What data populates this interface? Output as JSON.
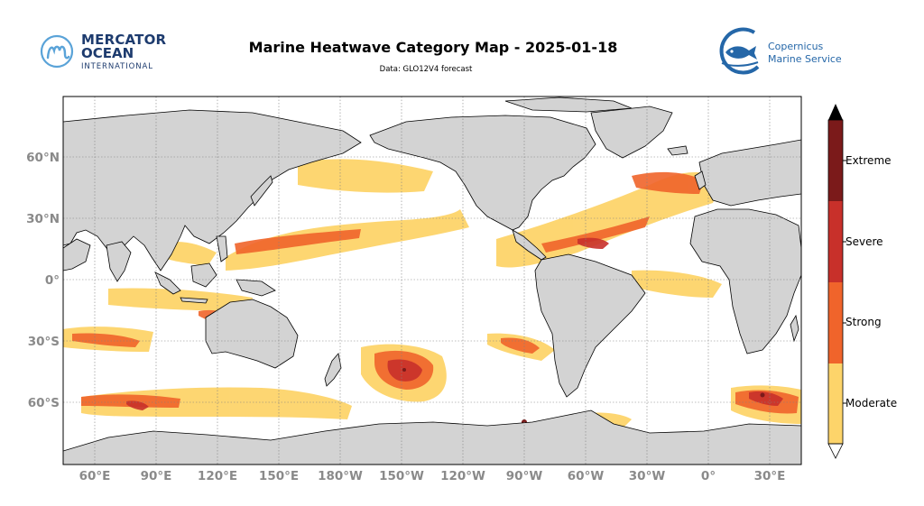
{
  "header": {
    "title": "Marine Heatwave Category Map - 2025-01-18",
    "subtitle": "Data: GLO12V4 forecast"
  },
  "logos": {
    "left": {
      "line1": "MERCATOR",
      "line2": "OCEAN",
      "line3": "INTERNATIONAL"
    },
    "right": {
      "line1": "Copernicus",
      "line2": "Marine Service"
    }
  },
  "map": {
    "projection": "plate-carree",
    "central_longitude": "Pacific-centered (~-150°)",
    "lat_ticks": [
      "60°N",
      "30°N",
      "0°",
      "30°S",
      "60°S"
    ],
    "lon_ticks": [
      "60°E",
      "90°E",
      "120°E",
      "150°E",
      "180°W",
      "150°W",
      "120°W",
      "90°W",
      "60°W",
      "30°W",
      "0°",
      "30°E"
    ],
    "land_color": "#d3d3d3",
    "grid": "dotted"
  },
  "colorbar": {
    "labels": [
      "Extreme",
      "Severe",
      "Strong",
      "Moderate"
    ],
    "colors": {
      "extreme": "#7b1a1a",
      "severe": "#c8302a",
      "strong": "#f0642b",
      "moderate": "#fdd46a"
    }
  }
}
